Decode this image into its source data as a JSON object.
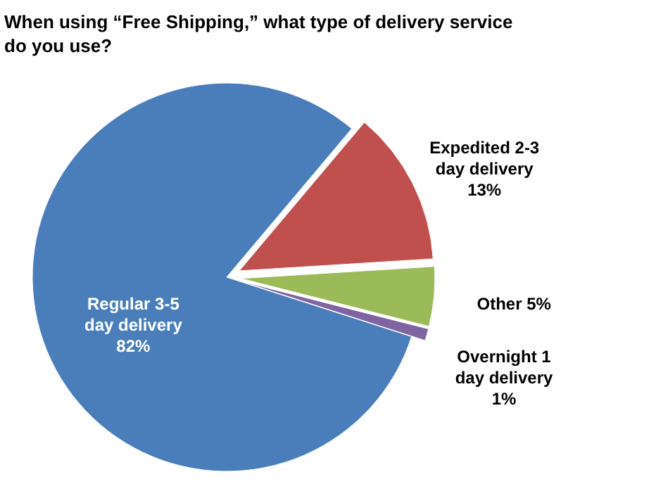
{
  "chart_data": {
    "type": "pie",
    "title": "When using “Free Shipping,” what type of delivery service do you use?",
    "categories": [
      "Expedited 2-3 day delivery",
      "Other",
      "Overnight 1 day delivery",
      "Regular 3-5 day delivery"
    ],
    "values": [
      13,
      5,
      1,
      82
    ],
    "colors": [
      "#c0504d",
      "#9bbb59",
      "#8064a2",
      "#4a7ebb"
    ],
    "value_labels": [
      "13%",
      "5%",
      "1%",
      "82%"
    ],
    "legend": false
  }
}
